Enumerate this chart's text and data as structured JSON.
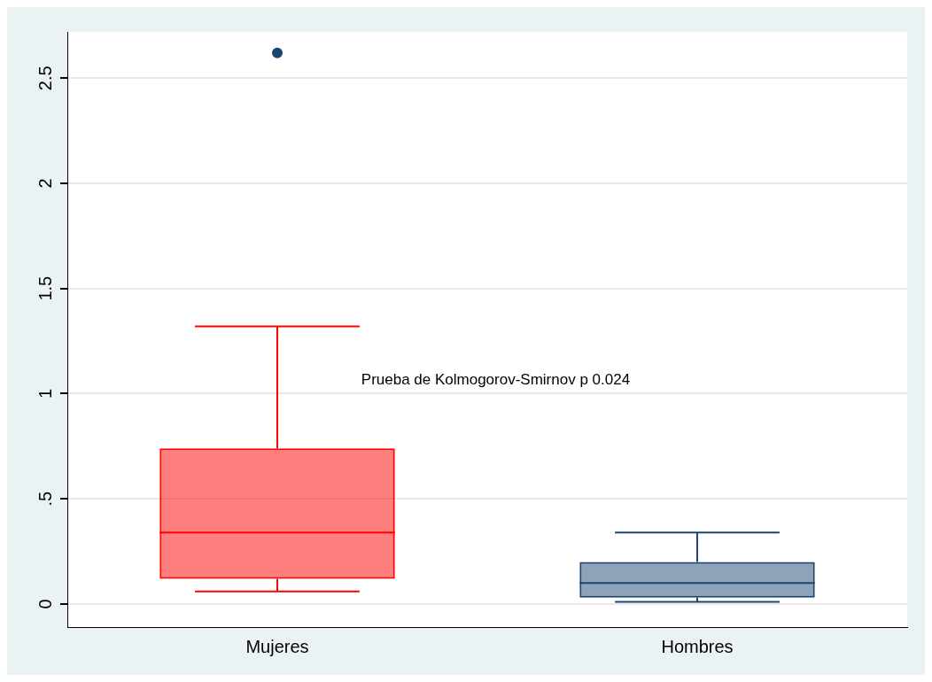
{
  "chart_data": {
    "type": "box",
    "categories": [
      "Mujeres",
      "Hombres"
    ],
    "colors": [
      "#ff0000",
      "#1d4571"
    ],
    "boxes": [
      {
        "low": 0.06,
        "q1": 0.12,
        "median": 0.34,
        "q3": 0.74,
        "high": 1.32,
        "outliers": [
          2.62
        ]
      },
      {
        "low": 0.01,
        "q1": 0.03,
        "median": 0.1,
        "q3": 0.2,
        "high": 0.34
      }
    ],
    "ylim": [
      -0.11,
      2.72
    ],
    "yticks": [
      0,
      {
        "value": 0.5,
        "label": ".5"
      },
      1,
      1.5,
      2,
      2.5
    ],
    "grid": "y",
    "legend": false,
    "annotations": [
      "Prueba de Kolmogorov-Smirnov p 0.024"
    ]
  }
}
